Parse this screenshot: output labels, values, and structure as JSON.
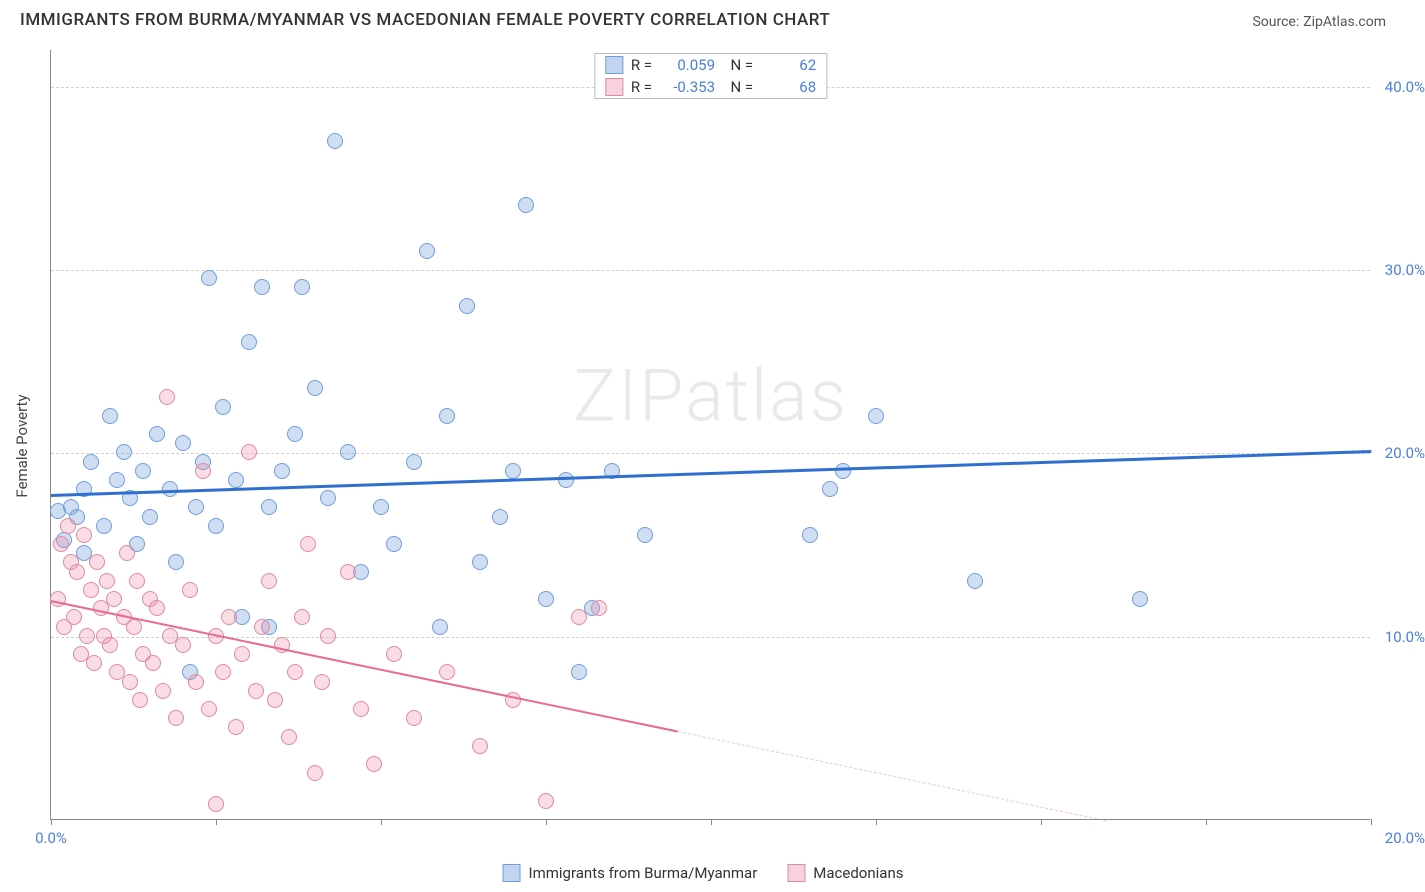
{
  "title": "IMMIGRANTS FROM BURMA/MYANMAR VS MACEDONIAN FEMALE POVERTY CORRELATION CHART",
  "source_label": "Source:",
  "source_name": "ZipAtlas.com",
  "watermark": "ZIPatlas",
  "y_axis_label": "Female Poverty",
  "x_range": [
    0,
    20
  ],
  "y_range": [
    0,
    42
  ],
  "y_ticks": [
    10,
    20,
    30,
    40
  ],
  "y_tick_labels": [
    "10.0%",
    "20.0%",
    "30.0%",
    "40.0%"
  ],
  "x_ticks": [
    0,
    2.5,
    5,
    7.5,
    10,
    12.5,
    15,
    17.5,
    20
  ],
  "x_tick_labels_shown": {
    "0": "0.0%",
    "20": "20.0%"
  },
  "series": [
    {
      "name": "Immigrants from Burma/Myanmar",
      "color_fill": "rgba(120,160,220,0.35)",
      "color_stroke": "#6f9fd8",
      "marker_radius": 8,
      "R": "0.059",
      "N": "62",
      "trend": {
        "y_at_x0": 17.8,
        "y_at_x20": 20.2,
        "color": "#2f6fd0",
        "width": 2.5,
        "dash_after_x": null
      },
      "points": [
        [
          0.1,
          16.8
        ],
        [
          0.2,
          15.2
        ],
        [
          0.3,
          17.0
        ],
        [
          0.4,
          16.5
        ],
        [
          0.5,
          18.0
        ],
        [
          0.5,
          14.5
        ],
        [
          0.6,
          19.5
        ],
        [
          0.8,
          16.0
        ],
        [
          0.9,
          22.0
        ],
        [
          1.0,
          18.5
        ],
        [
          1.1,
          20.0
        ],
        [
          1.2,
          17.5
        ],
        [
          1.3,
          15.0
        ],
        [
          1.4,
          19.0
        ],
        [
          1.5,
          16.5
        ],
        [
          1.6,
          21.0
        ],
        [
          1.8,
          18.0
        ],
        [
          1.9,
          14.0
        ],
        [
          2.0,
          20.5
        ],
        [
          2.1,
          8.0
        ],
        [
          2.2,
          17.0
        ],
        [
          2.3,
          19.5
        ],
        [
          2.4,
          29.5
        ],
        [
          2.5,
          16.0
        ],
        [
          2.6,
          22.5
        ],
        [
          2.8,
          18.5
        ],
        [
          2.9,
          11.0
        ],
        [
          3.0,
          26.0
        ],
        [
          3.2,
          29.0
        ],
        [
          3.3,
          17.0
        ],
        [
          3.3,
          10.5
        ],
        [
          3.5,
          19.0
        ],
        [
          3.7,
          21.0
        ],
        [
          3.8,
          29.0
        ],
        [
          4.0,
          23.5
        ],
        [
          4.2,
          17.5
        ],
        [
          4.3,
          37.0
        ],
        [
          4.5,
          20.0
        ],
        [
          4.7,
          13.5
        ],
        [
          5.0,
          17.0
        ],
        [
          5.2,
          15.0
        ],
        [
          5.5,
          19.5
        ],
        [
          5.7,
          31.0
        ],
        [
          5.9,
          10.5
        ],
        [
          6.0,
          22.0
        ],
        [
          6.3,
          28.0
        ],
        [
          6.5,
          14.0
        ],
        [
          6.8,
          16.5
        ],
        [
          7.0,
          19.0
        ],
        [
          7.2,
          33.5
        ],
        [
          7.5,
          12.0
        ],
        [
          7.8,
          18.5
        ],
        [
          8.0,
          8.0
        ],
        [
          8.2,
          11.5
        ],
        [
          8.5,
          19.0
        ],
        [
          9.0,
          15.5
        ],
        [
          11.5,
          15.5
        ],
        [
          11.8,
          18.0
        ],
        [
          12.5,
          22.0
        ],
        [
          14.0,
          13.0
        ],
        [
          16.5,
          12.0
        ],
        [
          12.0,
          19.0
        ]
      ]
    },
    {
      "name": "Macedonians",
      "color_fill": "rgba(235,140,165,0.30)",
      "color_stroke": "#e08aa5",
      "marker_radius": 8,
      "R": "-0.353",
      "N": "68",
      "trend": {
        "y_at_x0": 12.0,
        "y_at_x20": -3.0,
        "color": "#e86a92",
        "width": 1.8,
        "dash_after_x": 9.5
      },
      "points": [
        [
          0.1,
          12.0
        ],
        [
          0.15,
          15.0
        ],
        [
          0.2,
          10.5
        ],
        [
          0.25,
          16.0
        ],
        [
          0.3,
          14.0
        ],
        [
          0.35,
          11.0
        ],
        [
          0.4,
          13.5
        ],
        [
          0.45,
          9.0
        ],
        [
          0.5,
          15.5
        ],
        [
          0.55,
          10.0
        ],
        [
          0.6,
          12.5
        ],
        [
          0.65,
          8.5
        ],
        [
          0.7,
          14.0
        ],
        [
          0.75,
          11.5
        ],
        [
          0.8,
          10.0
        ],
        [
          0.85,
          13.0
        ],
        [
          0.9,
          9.5
        ],
        [
          0.95,
          12.0
        ],
        [
          1.0,
          8.0
        ],
        [
          1.1,
          11.0
        ],
        [
          1.15,
          14.5
        ],
        [
          1.2,
          7.5
        ],
        [
          1.25,
          10.5
        ],
        [
          1.3,
          13.0
        ],
        [
          1.35,
          6.5
        ],
        [
          1.4,
          9.0
        ],
        [
          1.5,
          12.0
        ],
        [
          1.55,
          8.5
        ],
        [
          1.6,
          11.5
        ],
        [
          1.7,
          7.0
        ],
        [
          1.75,
          23.0
        ],
        [
          1.8,
          10.0
        ],
        [
          1.9,
          5.5
        ],
        [
          2.0,
          9.5
        ],
        [
          2.1,
          12.5
        ],
        [
          2.2,
          7.5
        ],
        [
          2.3,
          19.0
        ],
        [
          2.4,
          6.0
        ],
        [
          2.5,
          10.0
        ],
        [
          2.6,
          8.0
        ],
        [
          2.7,
          11.0
        ],
        [
          2.8,
          5.0
        ],
        [
          2.9,
          9.0
        ],
        [
          3.0,
          20.0
        ],
        [
          3.1,
          7.0
        ],
        [
          3.2,
          10.5
        ],
        [
          3.3,
          13.0
        ],
        [
          3.4,
          6.5
        ],
        [
          3.5,
          9.5
        ],
        [
          3.6,
          4.5
        ],
        [
          3.7,
          8.0
        ],
        [
          3.8,
          11.0
        ],
        [
          3.9,
          15.0
        ],
        [
          4.0,
          2.5
        ],
        [
          4.1,
          7.5
        ],
        [
          4.2,
          10.0
        ],
        [
          4.5,
          13.5
        ],
        [
          4.7,
          6.0
        ],
        [
          4.9,
          3.0
        ],
        [
          5.2,
          9.0
        ],
        [
          5.5,
          5.5
        ],
        [
          6.0,
          8.0
        ],
        [
          6.5,
          4.0
        ],
        [
          7.0,
          6.5
        ],
        [
          7.5,
          1.0
        ],
        [
          8.0,
          11.0
        ],
        [
          8.3,
          11.5
        ],
        [
          2.5,
          0.8
        ]
      ]
    }
  ],
  "legend_swatches": [
    {
      "fill": "rgba(120,160,220,0.45)",
      "stroke": "#6f9fd8"
    },
    {
      "fill": "rgba(235,140,165,0.40)",
      "stroke": "#e08aa5"
    }
  ],
  "colors": {
    "axis": "#888888",
    "grid": "#d0d0d0",
    "tick_text": "#4a7fd8"
  }
}
